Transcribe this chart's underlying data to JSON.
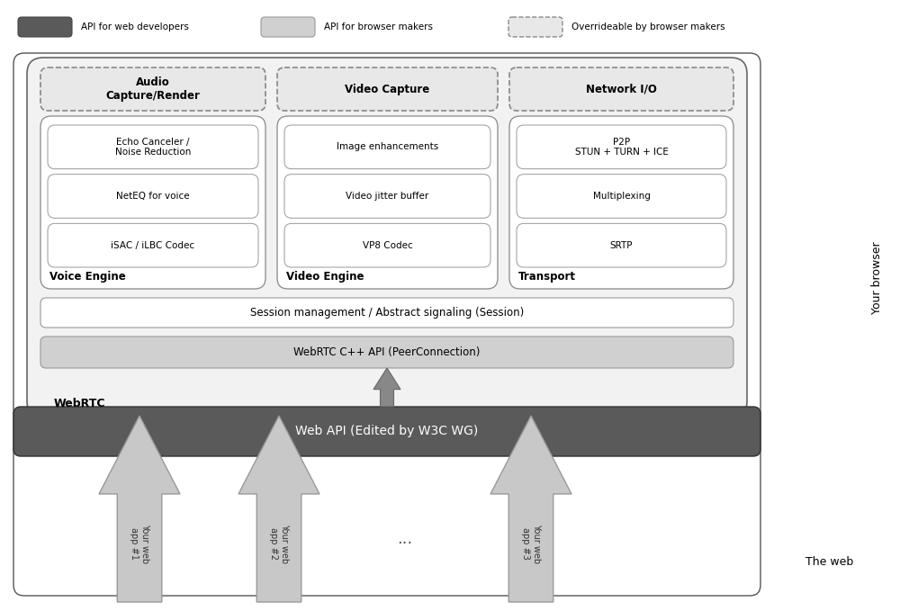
{
  "bg_color": "#ffffff",
  "fig_width": 10.0,
  "fig_height": 6.79,
  "web_api_color": "#5a5a5a",
  "arrow_fill_color": "#c8c8c8",
  "arrow_edge_color": "#999999",
  "light_gray": "#d0d0d0",
  "very_light_gray": "#e8e8e8",
  "mid_gray": "#aaaaaa",
  "title_web": "The web",
  "title_browser": "Your browser",
  "web_api_label": "Web API (Edited by W3C WG)",
  "webrtc_label": "WebRTC",
  "cpp_api_label": "WebRTC C++ API (PeerConnection)",
  "session_label": "Session management / Abstract signaling (Session)",
  "voice_engine_label": "Voice Engine",
  "video_engine_label": "Video Engine",
  "transport_label": "Transport",
  "voice_items": [
    "iSAC / iLBC Codec",
    "NetEQ for voice",
    "Echo Canceler /\nNoise Reduction"
  ],
  "video_items": [
    "VP8 Codec",
    "Video jitter buffer",
    "Image enhancements"
  ],
  "transport_items": [
    "SRTP",
    "Multiplexing",
    "P2P\nSTUN + TURN + ICE"
  ],
  "capture_labels": [
    "Audio\nCapture/Render",
    "Video Capture",
    "Network I/O"
  ],
  "arrow_labels": [
    "Your web\napp #1",
    "Your web\napp #2",
    "Your web\napp #3"
  ],
  "dots_label": "...",
  "legend_dark_label": "API for web developers",
  "legend_light_label": "API for browser makers",
  "legend_dash_label": "Overrideable by browser makers"
}
